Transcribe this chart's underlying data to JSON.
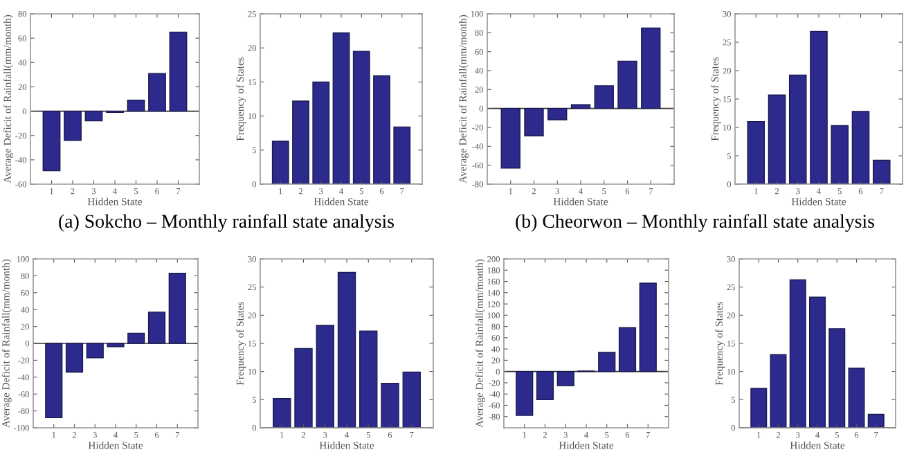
{
  "chart_data": [
    {
      "type": "bar",
      "categories": [
        "1",
        "2",
        "3",
        "4",
        "5",
        "6",
        "7"
      ],
      "values": [
        -49,
        -24,
        -8,
        -1,
        9,
        31,
        65
      ],
      "color": "#2c2a8c",
      "xlabel": "Hidden State",
      "ylabel": "Average Deficit of Rainfall(mm/month)",
      "ylim": [
        -60,
        80
      ],
      "yticks": [
        -60,
        -40,
        -20,
        0,
        20,
        40,
        60,
        80
      ],
      "annotations": [
        "(a) Sokcho – Monthly rainfall state analysis"
      ]
    },
    {
      "type": "bar",
      "categories": [
        "1",
        "2",
        "3",
        "4",
        "5",
        "6",
        "7"
      ],
      "values": [
        6.3,
        12.2,
        15,
        22.2,
        19.5,
        15.9,
        8.4
      ],
      "color": "#2c2a8c",
      "xlabel": "Hidden State",
      "ylabel": "Frequency of States",
      "ylim": [
        0,
        25
      ],
      "yticks": [
        0,
        5,
        10,
        15,
        20,
        25
      ]
    },
    {
      "type": "bar",
      "categories": [
        "1",
        "2",
        "3",
        "4",
        "5",
        "6",
        "7"
      ],
      "values": [
        -63,
        -29,
        -12,
        4,
        24,
        50,
        85
      ],
      "color": "#2c2a8c",
      "xlabel": "Hidden State",
      "ylabel": "Average Deficit of Rainfall(mm/month)",
      "ylim": [
        -80,
        100
      ],
      "yticks": [
        -80,
        -60,
        -40,
        -20,
        0,
        20,
        40,
        60,
        80,
        100
      ],
      "annotations": [
        "(b) Cheorwon – Monthly rainfall state analysis"
      ]
    },
    {
      "type": "bar",
      "categories": [
        "1",
        "2",
        "3",
        "4",
        "5",
        "6",
        "7"
      ],
      "values": [
        11,
        15.7,
        19.2,
        26.9,
        10.3,
        12.8,
        4.2
      ],
      "color": "#2c2a8c",
      "xlabel": "Hidden State",
      "ylabel": "Frequency of States",
      "ylim": [
        0,
        30
      ],
      "yticks": [
        0,
        5,
        10,
        15,
        20,
        25,
        30
      ]
    },
    {
      "type": "bar",
      "categories": [
        "1",
        "2",
        "3",
        "4",
        "5",
        "6",
        "7"
      ],
      "values": [
        -88,
        -34,
        -17,
        -4,
        12,
        37,
        83
      ],
      "color": "#2c2a8c",
      "xlabel": "Hidden State",
      "ylabel": "Average Deficit of Rainfall(mm/month)",
      "ylim": [
        -100,
        100
      ],
      "yticks": [
        -100,
        -80,
        -60,
        -40,
        -20,
        0,
        20,
        40,
        60,
        80,
        100
      ]
    },
    {
      "type": "bar",
      "categories": [
        "1",
        "2",
        "3",
        "4",
        "5",
        "6",
        "7"
      ],
      "values": [
        5.2,
        14.1,
        18.2,
        27.6,
        17.2,
        7.9,
        9.9
      ],
      "color": "#2c2a8c",
      "xlabel": "Hidden State",
      "ylabel": "Frequency of States",
      "ylim": [
        0,
        30
      ],
      "yticks": [
        0,
        5,
        10,
        15,
        20,
        25,
        30
      ]
    },
    {
      "type": "bar",
      "categories": [
        "1",
        "2",
        "3",
        "4",
        "5",
        "6",
        "7"
      ],
      "values": [
        -78,
        -50,
        -25,
        1,
        34,
        78,
        157
      ],
      "color": "#2c2a8c",
      "xlabel": "Hidden State",
      "ylabel": "Average Deficit of Rainfall(mm/month)",
      "ylim": [
        -100,
        200
      ],
      "yticks": [
        -80,
        -60,
        -40,
        -20,
        0,
        20,
        40,
        60,
        80,
        100,
        120,
        140,
        160,
        180,
        200
      ]
    },
    {
      "type": "bar",
      "categories": [
        "1",
        "2",
        "3",
        "4",
        "5",
        "6",
        "7"
      ],
      "values": [
        7,
        13,
        26.3,
        23.2,
        17.6,
        10.6,
        2.4
      ],
      "color": "#2c2a8c",
      "xlabel": "Hidden State",
      "ylabel": "Frequency of States",
      "ylim": [
        0,
        30
      ],
      "yticks": [
        0,
        5,
        10,
        15,
        20,
        25,
        30
      ]
    }
  ]
}
